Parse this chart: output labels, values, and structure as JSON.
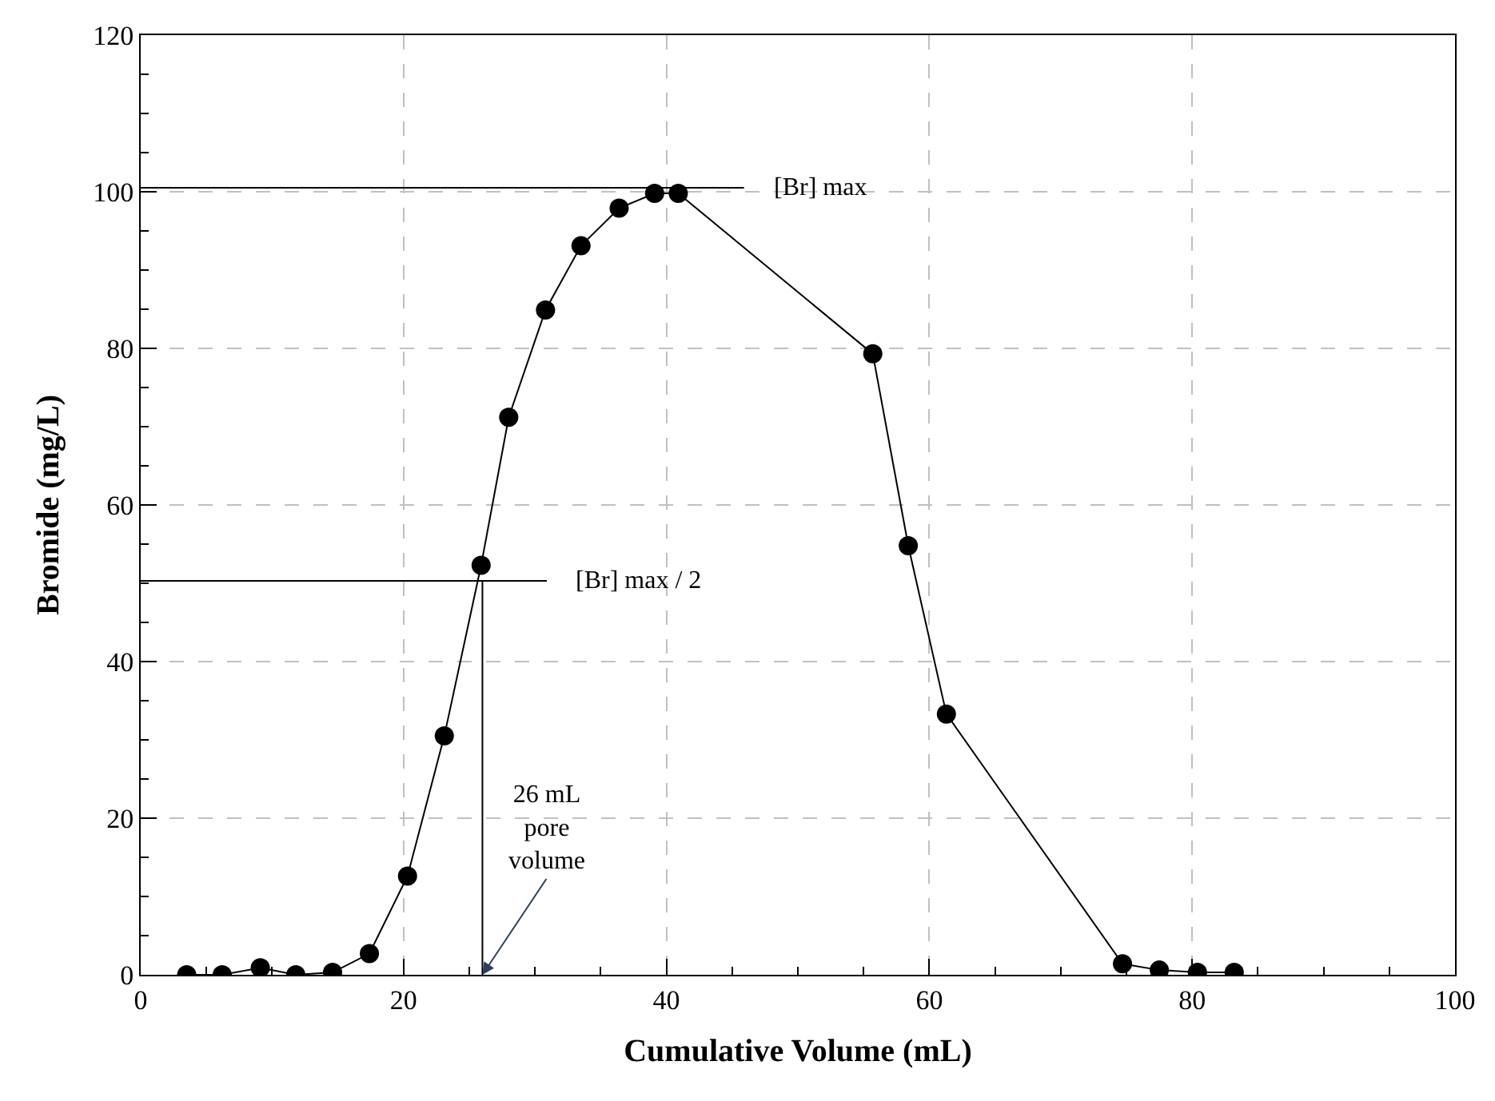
{
  "chart_data": {
    "type": "line",
    "xlabel": "Cumulative Volume (mL)",
    "ylabel": "Bromide (mg/L)",
    "x": [
      3.5,
      6.2,
      9.1,
      11.8,
      14.6,
      17.4,
      20.3,
      23.1,
      25.9,
      28.0,
      30.8,
      33.5,
      36.4,
      39.1,
      40.9,
      55.7,
      58.4,
      61.3,
      74.7,
      77.5,
      80.4,
      83.2
    ],
    "series": [
      {
        "color": "#000000",
        "values": [
          0,
          0,
          0.9,
          0,
          0.3,
          2.7,
          12.6,
          30.5,
          52.3,
          71.2,
          84.9,
          93.1,
          97.9,
          99.8,
          99.8,
          79.3,
          54.8,
          33.3,
          1.4,
          0.6,
          0.3,
          0.3
        ]
      }
    ],
    "xlim": [
      0,
      100
    ],
    "xticks": [
      0,
      20,
      40,
      60,
      80,
      100
    ],
    "ylim": [
      0,
      120
    ],
    "yticks": [
      0,
      20,
      40,
      60,
      80,
      100,
      120
    ],
    "grid": true,
    "marker": "circle",
    "line_style": "solid",
    "ref_lines": [
      {
        "axis": "y",
        "value": 100.5,
        "label": "[Br] max",
        "color": "#000000"
      },
      {
        "axis": "y",
        "value": 50.3,
        "label": "[Br] max / 2",
        "color": "#000000"
      },
      {
        "axis": "x",
        "value": 26,
        "color": "#000000"
      }
    ],
    "annotations": [
      {
        "text": "26 mL\npore\nvolume",
        "x": 26,
        "y": 0
      }
    ]
  }
}
